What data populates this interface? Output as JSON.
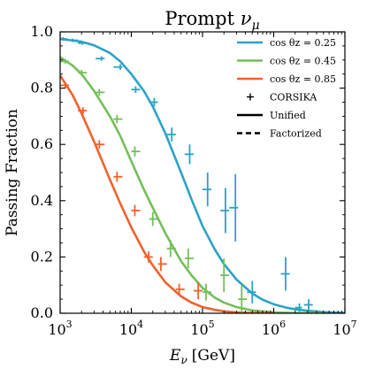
{
  "chart_data": {
    "type": "line",
    "title": "Prompt νμ",
    "title_main": "Prompt ",
    "title_sym": "ν",
    "title_sub": "μ",
    "xlabel_sym": "E",
    "xlabel_sub": "ν",
    "xlabel_unit": "[GeV]",
    "ylabel": "Passing Fraction",
    "x_scale": "log",
    "xlim": [
      1000,
      10000000
    ],
    "ylim": [
      0.0,
      1.0
    ],
    "x_ticks": [
      {
        "value": 1000,
        "mant": "10",
        "exp": "3"
      },
      {
        "value": 10000,
        "mant": "10",
        "exp": "4"
      },
      {
        "value": 100000,
        "mant": "10",
        "exp": "5"
      },
      {
        "value": 1000000,
        "mant": "10",
        "exp": "6"
      },
      {
        "value": 10000000,
        "mant": "10",
        "exp": "7"
      }
    ],
    "y_ticks": [
      {
        "value": 0.0,
        "label": "0.0"
      },
      {
        "value": 0.2,
        "label": "0.2"
      },
      {
        "value": 0.4,
        "label": "0.4"
      },
      {
        "value": 0.6,
        "label": "0.6"
      },
      {
        "value": 0.8,
        "label": "0.8"
      },
      {
        "value": 1.0,
        "label": "1.0"
      }
    ],
    "grid": false,
    "legend_position": "top-right",
    "legend": [
      {
        "kind": "line",
        "color": "#2ba3c6",
        "dash": false,
        "label": "cos θz = 0.25"
      },
      {
        "kind": "line",
        "color": "#74bf5a",
        "dash": false,
        "label": "cos θz = 0.45"
      },
      {
        "kind": "line",
        "color": "#f0622a",
        "dash": false,
        "label": "cos θz = 0.85"
      },
      {
        "kind": "marker",
        "color": "#000000",
        "dash": false,
        "label": "CORSIKA"
      },
      {
        "kind": "line",
        "color": "#000000",
        "dash": false,
        "label": "Unified"
      },
      {
        "kind": "line",
        "color": "#000000",
        "dash": true,
        "label": "Factorized"
      }
    ],
    "series": [
      {
        "name": "cos θz = 0.25",
        "color": "#2ba3c6",
        "curve_x": [
          1000,
          2000,
          3000,
          5000,
          7000,
          10000,
          15000,
          20000,
          30000,
          50000,
          70000,
          100000,
          150000,
          200000,
          300000,
          500000,
          700000,
          1000000,
          1500000,
          2000000,
          3000000,
          5000000,
          10000000
        ],
        "curve_y": [
          0.975,
          0.965,
          0.952,
          0.925,
          0.895,
          0.85,
          0.79,
          0.735,
          0.64,
          0.5,
          0.405,
          0.31,
          0.225,
          0.175,
          0.12,
          0.07,
          0.048,
          0.032,
          0.02,
          0.014,
          0.009,
          0.004,
          0.001
        ],
        "points": [
          {
            "x": 1100,
            "y": 0.975,
            "xerr": [
              1000,
              1250
            ],
            "yerr": 0.006
          },
          {
            "x": 1500,
            "y": 0.97,
            "xerr": [
              1250,
              1780
            ],
            "yerr": 0.006
          },
          {
            "x": 2050,
            "y": 0.96,
            "xerr": [
              1780,
              2370
            ],
            "yerr": 0.006
          },
          {
            "x": 3800,
            "y": 0.905,
            "xerr": [
              3160,
              4220
            ],
            "yerr": 0.008
          },
          {
            "x": 7000,
            "y": 0.875,
            "xerr": [
              5620,
              7500
            ],
            "yerr": 0.01
          },
          {
            "x": 11500,
            "y": 0.795,
            "xerr": [
              10000,
              13300
            ],
            "yerr": 0.012
          },
          {
            "x": 21000,
            "y": 0.75,
            "xerr": [
              17800,
              23700
            ],
            "yerr": 0.015
          },
          {
            "x": 37000,
            "y": 0.635,
            "xerr": [
              31600,
              42200
            ],
            "yerr": 0.025
          },
          {
            "x": 66000,
            "y": 0.565,
            "xerr": [
              56200,
              75000
            ],
            "yerr": 0.035
          },
          {
            "x": 118000,
            "y": 0.44,
            "xerr": [
              100000,
              133000
            ],
            "yerr": 0.06
          },
          {
            "x": 210000,
            "y": 0.365,
            "xerr": [
              178000,
              237000
            ],
            "yerr": 0.08
          },
          {
            "x": 290000,
            "y": 0.375,
            "xerr": [
              237000,
              316000
            ],
            "yerr": 0.12
          },
          {
            "x": 500000,
            "y": 0.075,
            "xerr": [
              422000,
              562000
            ],
            "yerr": 0.04
          },
          {
            "x": 1470000,
            "y": 0.14,
            "xerr": [
              1260000,
              1680000
            ],
            "yerr": 0.06
          },
          {
            "x": 2300000,
            "y": 0.02,
            "xerr": [
              1990000,
              2510000
            ],
            "yerr": 0.015
          },
          {
            "x": 3100000,
            "y": 0.03,
            "xerr": [
              2660000,
              3550000
            ],
            "yerr": 0.02
          }
        ]
      },
      {
        "name": "cos θz = 0.45",
        "color": "#74bf5a",
        "curve_x": [
          1000,
          1500,
          2000,
          3000,
          5000,
          7000,
          10000,
          15000,
          20000,
          30000,
          50000,
          70000,
          100000,
          150000,
          200000,
          300000,
          500000,
          1000000,
          2000000,
          5000000
        ],
        "curve_y": [
          0.91,
          0.88,
          0.85,
          0.79,
          0.7,
          0.63,
          0.54,
          0.44,
          0.375,
          0.285,
          0.185,
          0.135,
          0.09,
          0.055,
          0.038,
          0.022,
          0.01,
          0.003,
          0.001,
          0.0
        ],
        "points": [
          {
            "x": 1180,
            "y": 0.895,
            "xerr": [
              1000,
              1330
            ],
            "yerr": 0.008
          },
          {
            "x": 2000,
            "y": 0.855,
            "xerr": [
              1780,
              2370
            ],
            "yerr": 0.01
          },
          {
            "x": 3550,
            "y": 0.785,
            "xerr": [
              3160,
              4220
            ],
            "yerr": 0.012
          },
          {
            "x": 6300,
            "y": 0.69,
            "xerr": [
              5620,
              7500
            ],
            "yerr": 0.015
          },
          {
            "x": 11200,
            "y": 0.575,
            "xerr": [
              10000,
              13300
            ],
            "yerr": 0.018
          },
          {
            "x": 20000,
            "y": 0.335,
            "xerr": [
              17800,
              23700
            ],
            "yerr": 0.025
          },
          {
            "x": 35500,
            "y": 0.23,
            "xerr": [
              31600,
              42200
            ],
            "yerr": 0.03
          },
          {
            "x": 63000,
            "y": 0.195,
            "xerr": [
              56200,
              75000
            ],
            "yerr": 0.035
          },
          {
            "x": 112000,
            "y": 0.075,
            "xerr": [
              100000,
              133000
            ],
            "yerr": 0.03
          },
          {
            "x": 200000,
            "y": 0.135,
            "xerr": [
              178000,
              237000
            ],
            "yerr": 0.06
          },
          {
            "x": 355000,
            "y": 0.05,
            "xerr": [
              316000,
              422000
            ],
            "yerr": 0.05
          }
        ]
      },
      {
        "name": "cos θz = 0.85",
        "color": "#f0622a",
        "curve_x": [
          1000,
          1500,
          2000,
          3000,
          5000,
          7000,
          10000,
          15000,
          20000,
          30000,
          50000,
          70000,
          100000,
          150000,
          200000,
          300000,
          500000,
          1000000
        ],
        "curve_y": [
          0.845,
          0.775,
          0.71,
          0.61,
          0.475,
          0.39,
          0.305,
          0.22,
          0.17,
          0.11,
          0.06,
          0.038,
          0.022,
          0.012,
          0.007,
          0.003,
          0.001,
          0.0
        ],
        "points": [
          {
            "x": 1180,
            "y": 0.81,
            "xerr": [
              1000,
              1330
            ],
            "yerr": 0.01
          },
          {
            "x": 2100,
            "y": 0.72,
            "xerr": [
              1780,
              2370
            ],
            "yerr": 0.012
          },
          {
            "x": 3550,
            "y": 0.6,
            "xerr": [
              3160,
              4220
            ],
            "yerr": 0.015
          },
          {
            "x": 6300,
            "y": 0.485,
            "xerr": [
              5620,
              7500
            ],
            "yerr": 0.018
          },
          {
            "x": 11200,
            "y": 0.365,
            "xerr": [
              10000,
              13300
            ],
            "yerr": 0.02
          },
          {
            "x": 17500,
            "y": 0.2,
            "xerr": [
              15000,
              20000
            ],
            "yerr": 0.02
          },
          {
            "x": 26000,
            "y": 0.175,
            "xerr": [
              23700,
              31600
            ],
            "yerr": 0.025
          },
          {
            "x": 47000,
            "y": 0.085,
            "xerr": [
              42200,
              56200
            ],
            "yerr": 0.02
          },
          {
            "x": 87000,
            "y": 0.08,
            "xerr": [
              75000,
              100000
            ],
            "yerr": 0.03
          }
        ]
      }
    ]
  }
}
